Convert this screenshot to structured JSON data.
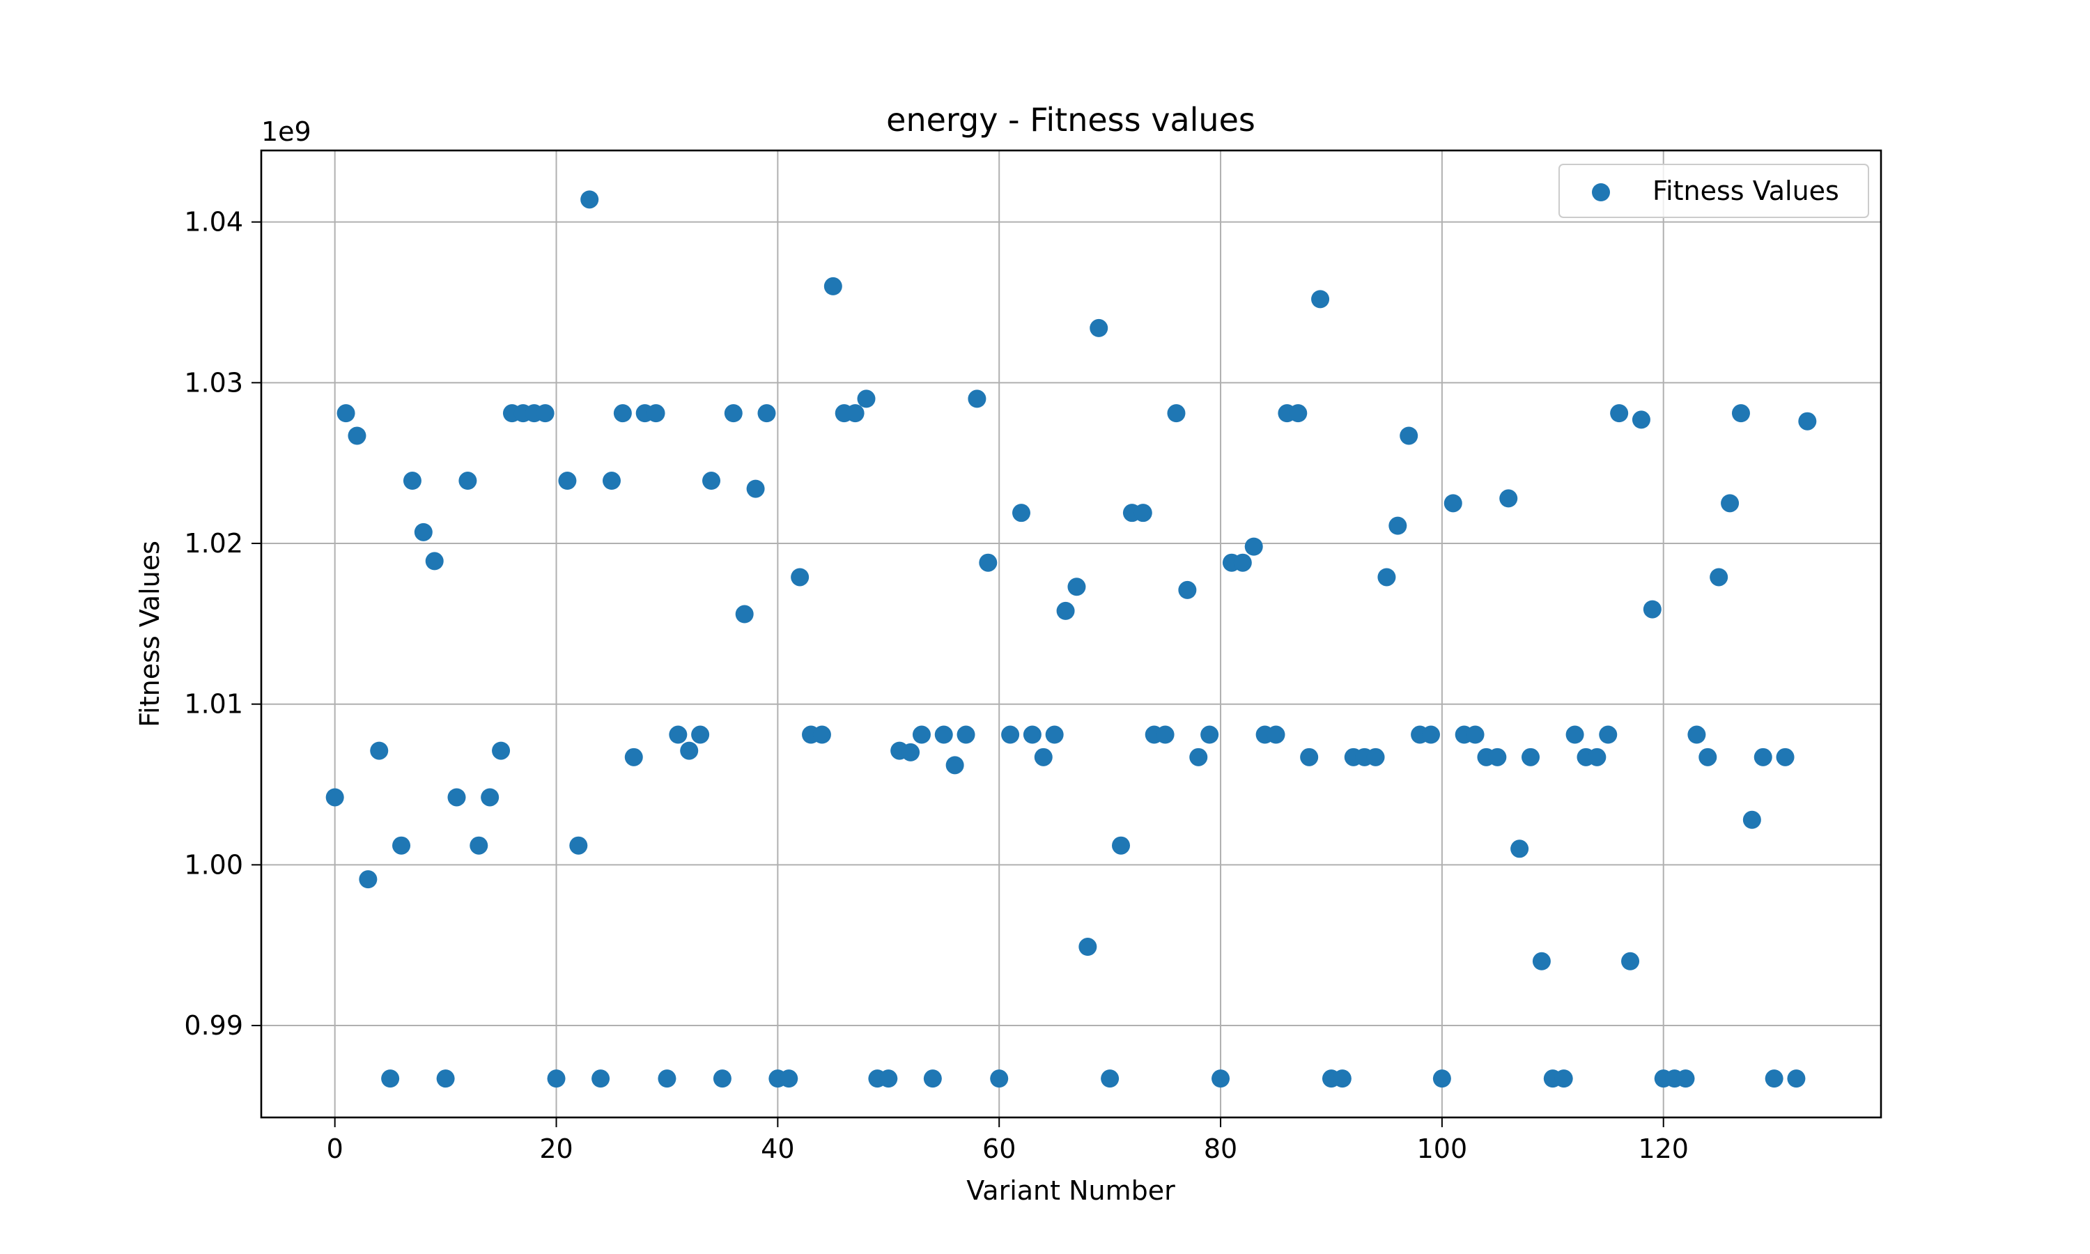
{
  "chart_data": {
    "type": "scatter",
    "title": "energy - Fitness values",
    "xlabel": "Variant Number",
    "ylabel": "Fitness Values",
    "y_scale_label": "1e9",
    "xlim": [
      -6.65,
      139.65
    ],
    "ylim": [
      0.98428,
      1.04445
    ],
    "xticks": [
      0,
      20,
      40,
      60,
      80,
      100,
      120
    ],
    "xtick_labels": [
      "0",
      "20",
      "40",
      "60",
      "80",
      "100",
      "120"
    ],
    "yticks": [
      0.99,
      1.0,
      1.01,
      1.02,
      1.03,
      1.04
    ],
    "ytick_labels": [
      "0.99",
      "1.00",
      "1.01",
      "1.02",
      "1.03",
      "1.04"
    ],
    "grid": true,
    "legend_position": "top-right",
    "series": [
      {
        "name": "Fitness Values",
        "color": "#1f77b4",
        "x": [
          0,
          1,
          2,
          3,
          4,
          5,
          6,
          7,
          8,
          9,
          10,
          11,
          12,
          13,
          14,
          15,
          16,
          17,
          18,
          19,
          20,
          21,
          22,
          23,
          24,
          25,
          26,
          27,
          28,
          29,
          30,
          31,
          32,
          33,
          34,
          35,
          36,
          37,
          38,
          39,
          40,
          41,
          42,
          43,
          44,
          45,
          46,
          47,
          48,
          49,
          50,
          51,
          52,
          53,
          54,
          55,
          56,
          57,
          58,
          59,
          60,
          61,
          62,
          63,
          64,
          65,
          66,
          67,
          68,
          69,
          70,
          71,
          72,
          73,
          74,
          75,
          76,
          77,
          78,
          79,
          80,
          81,
          82,
          83,
          84,
          85,
          86,
          87,
          88,
          89,
          90,
          91,
          92,
          93,
          94,
          95,
          96,
          97,
          98,
          99,
          100,
          101,
          102,
          103,
          104,
          105,
          106,
          107,
          108,
          109,
          110,
          111,
          112,
          113,
          114,
          115,
          116,
          117,
          118,
          119,
          120,
          121,
          122,
          123,
          124,
          125,
          126,
          127,
          128,
          129,
          130,
          131,
          132,
          133
        ],
        "y": [
          1.0042,
          1.0281,
          1.0267,
          0.9991,
          1.0071,
          0.9867,
          1.0012,
          1.0239,
          1.0207,
          1.0189,
          0.9867,
          1.0042,
          1.0239,
          1.0012,
          1.0042,
          1.0071,
          1.0281,
          1.0281,
          1.0281,
          1.0281,
          0.9867,
          1.0239,
          1.0012,
          1.0414,
          0.9867,
          1.0239,
          1.0281,
          1.0067,
          1.0281,
          1.0281,
          0.9867,
          1.0081,
          1.0071,
          1.0081,
          1.0239,
          0.9867,
          1.0281,
          1.0156,
          1.0234,
          1.0281,
          0.9867,
          0.9867,
          1.0179,
          1.0081,
          1.0081,
          1.036,
          1.0281,
          1.0281,
          1.029,
          0.9867,
          0.9867,
          1.0071,
          1.007,
          1.0081,
          0.9867,
          1.0081,
          1.0062,
          1.0081,
          1.029,
          1.0188,
          0.9867,
          1.0081,
          1.0219,
          1.0081,
          1.0067,
          1.0081,
          1.0158,
          1.0173,
          0.9949,
          1.0334,
          0.9867,
          1.0012,
          1.0219,
          1.0219,
          1.0081,
          1.0081,
          1.0281,
          1.0171,
          1.0067,
          1.0081,
          0.9867,
          1.0188,
          1.0188,
          1.0198,
          1.0081,
          1.0081,
          1.0281,
          1.0281,
          1.0067,
          1.0352,
          0.9867,
          0.9867,
          1.0067,
          1.0067,
          1.0067,
          1.0179,
          1.0211,
          1.0267,
          1.0081,
          1.0081,
          0.9867,
          1.0225,
          1.0081,
          1.0081,
          1.0067,
          1.0067,
          1.0228,
          1.001,
          1.0067,
          0.994,
          0.9867,
          0.9867,
          1.0081,
          1.0067,
          1.0067,
          1.0081,
          1.0281,
          0.994,
          1.0277,
          1.0159,
          0.9867,
          0.9867,
          0.9867,
          1.0081,
          1.0067,
          1.0179,
          1.0225,
          1.0281,
          1.0028,
          1.0067,
          0.9867,
          1.0067,
          0.9867,
          1.0276
        ]
      }
    ]
  }
}
